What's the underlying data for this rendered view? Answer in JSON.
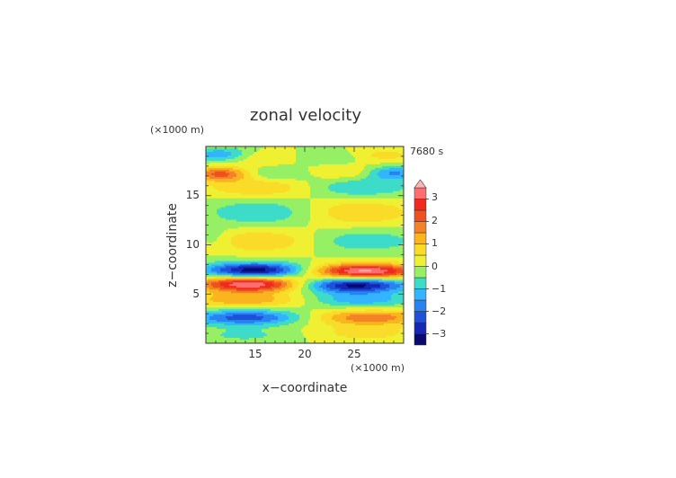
{
  "chart_data": {
    "type": "heatmap",
    "title": "zonal velocity",
    "xlabel": "x−coordinate",
    "ylabel": "z−coordinate",
    "x_unit": "(×1000 m)",
    "y_unit": "(×1000 m)",
    "time_label": "7680 s",
    "xlim": [
      10,
      30
    ],
    "ylim": [
      0,
      20
    ],
    "x_ticks": [
      "15",
      "20",
      "25"
    ],
    "y_ticks": [
      "5",
      "10",
      "15"
    ],
    "colorbar": {
      "range": [
        -3.5,
        3.5
      ],
      "tick_labels": [
        "3",
        "2",
        "1",
        "0",
        "−1",
        "−2",
        "−3"
      ],
      "tick_values": [
        3,
        2,
        1,
        0,
        -1,
        -2,
        -3
      ],
      "extend": "top",
      "levels": [
        {
          "from": -3.5,
          "to": -3.0,
          "color": "#0a0a6e"
        },
        {
          "from": -3.0,
          "to": -2.5,
          "color": "#1428b4"
        },
        {
          "from": -2.5,
          "to": -2.0,
          "color": "#1e50dc"
        },
        {
          "from": -2.0,
          "to": -1.5,
          "color": "#2882f0"
        },
        {
          "from": -1.5,
          "to": -1.0,
          "color": "#32b4ff"
        },
        {
          "from": -1.0,
          "to": -0.5,
          "color": "#3cdcc8"
        },
        {
          "from": -0.5,
          "to": 0.0,
          "color": "#96f064"
        },
        {
          "from": 0.0,
          "to": 0.5,
          "color": "#f0f032"
        },
        {
          "from": 0.5,
          "to": 1.0,
          "color": "#fadc28"
        },
        {
          "from": 1.0,
          "to": 1.5,
          "color": "#fab41e"
        },
        {
          "from": 1.5,
          "to": 2.0,
          "color": "#f58228"
        },
        {
          "from": 2.0,
          "to": 2.5,
          "color": "#f0501e"
        },
        {
          "from": 2.5,
          "to": 3.0,
          "color": "#f0281e"
        },
        {
          "from": 3.0,
          "to": 3.5,
          "color": "#ff6e6e"
        },
        {
          "from": 3.5,
          "to": 99,
          "color": "#ffb4b4"
        }
      ]
    },
    "blobs": [
      {
        "x": 14.0,
        "z": 0.8,
        "sx": 4.0,
        "sz": 0.6,
        "v": -0.6
      },
      {
        "x": 26.0,
        "z": 1.0,
        "sx": 4.0,
        "sz": 0.6,
        "v": 0.7
      },
      {
        "x": 14.0,
        "z": 2.6,
        "sx": 4.0,
        "sz": 0.55,
        "v": -2.3
      },
      {
        "x": 26.5,
        "z": 2.6,
        "sx": 4.0,
        "sz": 0.55,
        "v": 1.9
      },
      {
        "x": 14.0,
        "z": 4.4,
        "sx": 4.2,
        "sz": 0.55,
        "v": 1.4
      },
      {
        "x": 25.5,
        "z": 4.4,
        "sx": 4.0,
        "sz": 0.55,
        "v": -1.3
      },
      {
        "x": 14.5,
        "z": 6.0,
        "sx": 3.8,
        "sz": 0.55,
        "v": 3.6
      },
      {
        "x": 25.0,
        "z": 5.9,
        "sx": 3.8,
        "sz": 0.55,
        "v": -3.3
      },
      {
        "x": 15.0,
        "z": 7.4,
        "sx": 3.6,
        "sz": 0.55,
        "v": -3.4
      },
      {
        "x": 26.0,
        "z": 7.3,
        "sx": 3.8,
        "sz": 0.55,
        "v": 3.7
      },
      {
        "x": 15.5,
        "z": 10.4,
        "sx": 3.8,
        "sz": 0.8,
        "v": 1.0
      },
      {
        "x": 26.0,
        "z": 10.4,
        "sx": 3.8,
        "sz": 0.8,
        "v": -0.9
      },
      {
        "x": 11.0,
        "z": 10.6,
        "sx": 1.2,
        "sz": 0.8,
        "v": -0.5
      },
      {
        "x": 15.5,
        "z": 13.3,
        "sx": 3.8,
        "sz": 0.9,
        "v": -1.0
      },
      {
        "x": 25.5,
        "z": 13.3,
        "sx": 3.8,
        "sz": 0.9,
        "v": 1.0
      },
      {
        "x": 15.5,
        "z": 15.8,
        "sx": 3.8,
        "sz": 0.7,
        "v": 1.0
      },
      {
        "x": 25.5,
        "z": 15.8,
        "sx": 3.8,
        "sz": 0.7,
        "v": -1.0
      },
      {
        "x": 11.5,
        "z": 17.2,
        "sx": 2.0,
        "sz": 0.5,
        "v": 2.2
      },
      {
        "x": 17.0,
        "z": 17.2,
        "sx": 2.5,
        "sz": 0.5,
        "v": -0.6
      },
      {
        "x": 29.0,
        "z": 17.3,
        "sx": 2.0,
        "sz": 0.5,
        "v": -1.6
      },
      {
        "x": 24.0,
        "z": 17.4,
        "sx": 2.5,
        "sz": 0.5,
        "v": 0.6
      },
      {
        "x": 11.5,
        "z": 19.2,
        "sx": 2.2,
        "sz": 0.5,
        "v": -1.4
      },
      {
        "x": 15.5,
        "z": 18.9,
        "sx": 2.5,
        "sz": 0.5,
        "v": 0.6
      },
      {
        "x": 28.0,
        "z": 19.1,
        "sx": 2.5,
        "sz": 0.5,
        "v": 0.7
      },
      {
        "x": 22.5,
        "z": 18.9,
        "sx": 2.5,
        "sz": 0.5,
        "v": -0.5
      }
    ]
  }
}
